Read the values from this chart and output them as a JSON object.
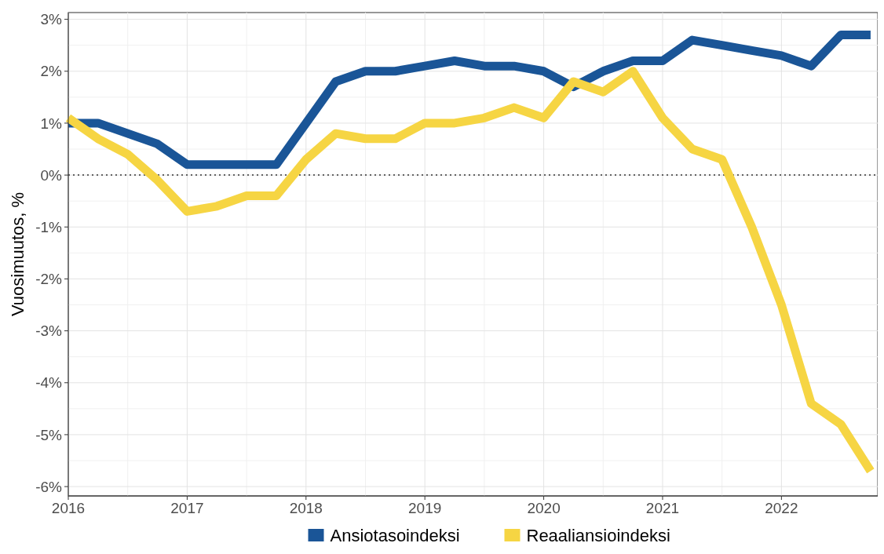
{
  "chart_data": {
    "type": "line",
    "ylabel": "Vuosimuutos, %",
    "x": [
      2016,
      2016.25,
      2016.5,
      2016.75,
      2017,
      2017.25,
      2017.5,
      2017.75,
      2018,
      2018.25,
      2018.5,
      2018.75,
      2019,
      2019.25,
      2019.5,
      2019.75,
      2020,
      2020.25,
      2020.5,
      2020.75,
      2021,
      2021.25,
      2021.5,
      2021.75,
      2022,
      2022.25,
      2022.5,
      2022.75
    ],
    "series": [
      {
        "name": "Ansiotasoindeksi",
        "color": "#1a5597",
        "values": [
          1.0,
          1.0,
          0.8,
          0.6,
          0.2,
          0.2,
          0.2,
          0.2,
          1.0,
          1.8,
          2.0,
          2.0,
          2.1,
          2.2,
          2.1,
          2.1,
          2.0,
          1.7,
          2.0,
          2.2,
          2.2,
          2.6,
          2.5,
          2.4,
          2.3,
          2.1,
          2.7,
          2.7
        ]
      },
      {
        "name": "Reaaliansioindeksi",
        "color": "#f6d543",
        "values": [
          1.1,
          0.7,
          0.4,
          -0.1,
          -0.7,
          -0.6,
          -0.4,
          -0.4,
          0.3,
          0.8,
          0.7,
          0.7,
          1.0,
          1.0,
          1.1,
          1.3,
          1.1,
          1.8,
          1.6,
          2.0,
          1.1,
          0.5,
          0.3,
          -1.0,
          -2.5,
          -4.4,
          -4.8,
          -5.7
        ]
      }
    ],
    "xlim": [
      2016,
      2022.81
    ],
    "xticks": [
      2016,
      2017,
      2018,
      2019,
      2020,
      2021,
      2022
    ],
    "ylim": [
      -6.18,
      3.13
    ],
    "yticks": [
      {
        "value": 3,
        "label": "3%"
      },
      {
        "value": 2,
        "label": "2%"
      },
      {
        "value": 1,
        "label": "1%"
      },
      {
        "value": 0,
        "label": "0%"
      },
      {
        "value": -1,
        "label": "-1%"
      },
      {
        "value": -2,
        "label": "-2%"
      },
      {
        "value": -3,
        "label": "-3%"
      },
      {
        "value": -4,
        "label": "-4%"
      },
      {
        "value": -5,
        "label": "-5%"
      },
      {
        "value": -6,
        "label": "-6%"
      }
    ],
    "ref_lines": [
      {
        "axis": "y",
        "value": 0,
        "color": "#333333",
        "line_style": "dotted"
      }
    ],
    "grid": true,
    "legend": "bottom",
    "line_style": "solid"
  }
}
